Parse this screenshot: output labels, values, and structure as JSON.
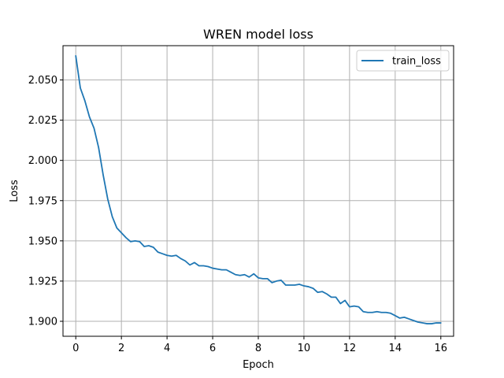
{
  "chart_data": {
    "type": "line",
    "title": "WREN model loss",
    "xlabel": "Epoch",
    "ylabel": "Loss",
    "xlim": [
      -0.56,
      16.56
    ],
    "ylim": [
      1.8907,
      2.0713
    ],
    "xticks": [
      0,
      2,
      4,
      6,
      8,
      10,
      12,
      14,
      16
    ],
    "yticks": [
      1.9,
      1.925,
      1.95,
      1.975,
      2.0,
      2.025,
      2.05
    ],
    "xtick_labels": [
      "0",
      "2",
      "4",
      "6",
      "8",
      "10",
      "12",
      "14",
      "16"
    ],
    "ytick_labels": [
      "1.900",
      "1.925",
      "1.950",
      "1.975",
      "2.000",
      "2.025",
      "2.050"
    ],
    "grid": true,
    "legend_position": "top-right",
    "series": [
      {
        "name": "train_loss",
        "color": "#1f77b4",
        "x": [
          0.0,
          0.2,
          0.4,
          0.6,
          0.8,
          1.0,
          1.2,
          1.4,
          1.6,
          1.8,
          2.0,
          2.2,
          2.4,
          2.6,
          2.8,
          3.0,
          3.2,
          3.4,
          3.6,
          3.8,
          4.0,
          4.2,
          4.4,
          4.6,
          4.8,
          5.0,
          5.2,
          5.4,
          5.6,
          5.8,
          6.0,
          6.2,
          6.4,
          6.6,
          6.8,
          7.0,
          7.2,
          7.4,
          7.6,
          7.8,
          8.0,
          8.2,
          8.4,
          8.6,
          8.8,
          9.0,
          9.2,
          9.4,
          9.6,
          9.8,
          10.0,
          10.2,
          10.4,
          10.6,
          10.8,
          11.0,
          11.2,
          11.4,
          11.6,
          11.8,
          12.0,
          12.2,
          12.4,
          12.6,
          12.8,
          13.0,
          13.2,
          13.4,
          13.6,
          13.8,
          14.0,
          14.2,
          14.4,
          14.6,
          14.8,
          15.0,
          15.2,
          15.4,
          15.6,
          15.8,
          16.0
        ],
        "values": [
          2.065,
          2.045,
          2.037,
          2.027,
          2.02,
          2.008,
          1.991,
          1.976,
          1.965,
          1.958,
          1.955,
          1.952,
          1.9495,
          1.95,
          1.9495,
          1.9465,
          1.947,
          1.946,
          1.943,
          1.942,
          1.941,
          1.9405,
          1.941,
          1.939,
          1.9375,
          1.935,
          1.9365,
          1.9345,
          1.9345,
          1.934,
          1.933,
          1.9325,
          1.932,
          1.932,
          1.9305,
          1.929,
          1.9285,
          1.929,
          1.9275,
          1.9295,
          1.927,
          1.9265,
          1.9265,
          1.924,
          1.925,
          1.9255,
          1.9225,
          1.9225,
          1.9225,
          1.923,
          1.922,
          1.9215,
          1.9205,
          1.918,
          1.9185,
          1.917,
          1.915,
          1.915,
          1.911,
          1.913,
          1.909,
          1.9095,
          1.909,
          1.906,
          1.9055,
          1.9055,
          1.906,
          1.9055,
          1.9055,
          1.905,
          1.9035,
          1.902,
          1.9025,
          1.9015,
          1.9005,
          1.8995,
          1.899,
          1.8985,
          1.8985,
          1.899,
          1.899
        ]
      }
    ]
  }
}
